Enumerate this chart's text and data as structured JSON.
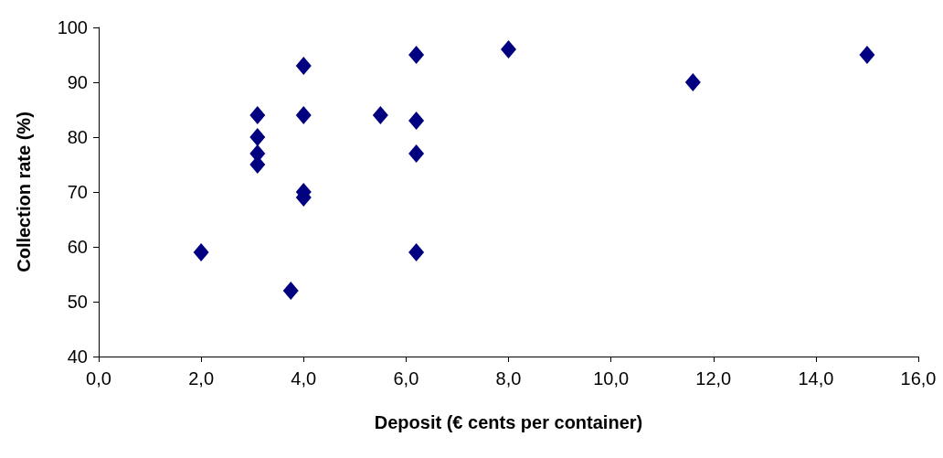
{
  "chart_data": {
    "type": "scatter",
    "xlabel": "Deposit (€ cents per container)",
    "ylabel": "Collection rate (%)",
    "x": [
      2.0,
      3.1,
      3.1,
      3.1,
      3.1,
      3.75,
      4.0,
      4.0,
      4.0,
      4.0,
      5.5,
      6.2,
      6.2,
      6.2,
      6.2,
      8.0,
      11.6,
      15.0
    ],
    "series": [
      {
        "color": "#000080",
        "values": [
          59,
          84,
          80,
          77,
          75,
          52,
          93,
          84,
          70,
          69,
          84,
          95,
          83,
          77,
          59,
          96,
          90,
          95
        ]
      }
    ],
    "xlim": [
      0,
      16
    ],
    "ylim": [
      40,
      100
    ],
    "xticks": [
      {
        "value": 0,
        "label": "0,0"
      },
      {
        "value": 2,
        "label": "2,0"
      },
      {
        "value": 4,
        "label": "4,0"
      },
      {
        "value": 6,
        "label": "6,0"
      },
      {
        "value": 8,
        "label": "8,0"
      },
      {
        "value": 10,
        "label": "10,0"
      },
      {
        "value": 12,
        "label": "12,0"
      },
      {
        "value": 14,
        "label": "14,0"
      },
      {
        "value": 16,
        "label": "16,0"
      }
    ],
    "yticks": [
      40,
      50,
      60,
      70,
      80,
      90,
      100
    ],
    "grid": false,
    "marker": "diamond"
  }
}
